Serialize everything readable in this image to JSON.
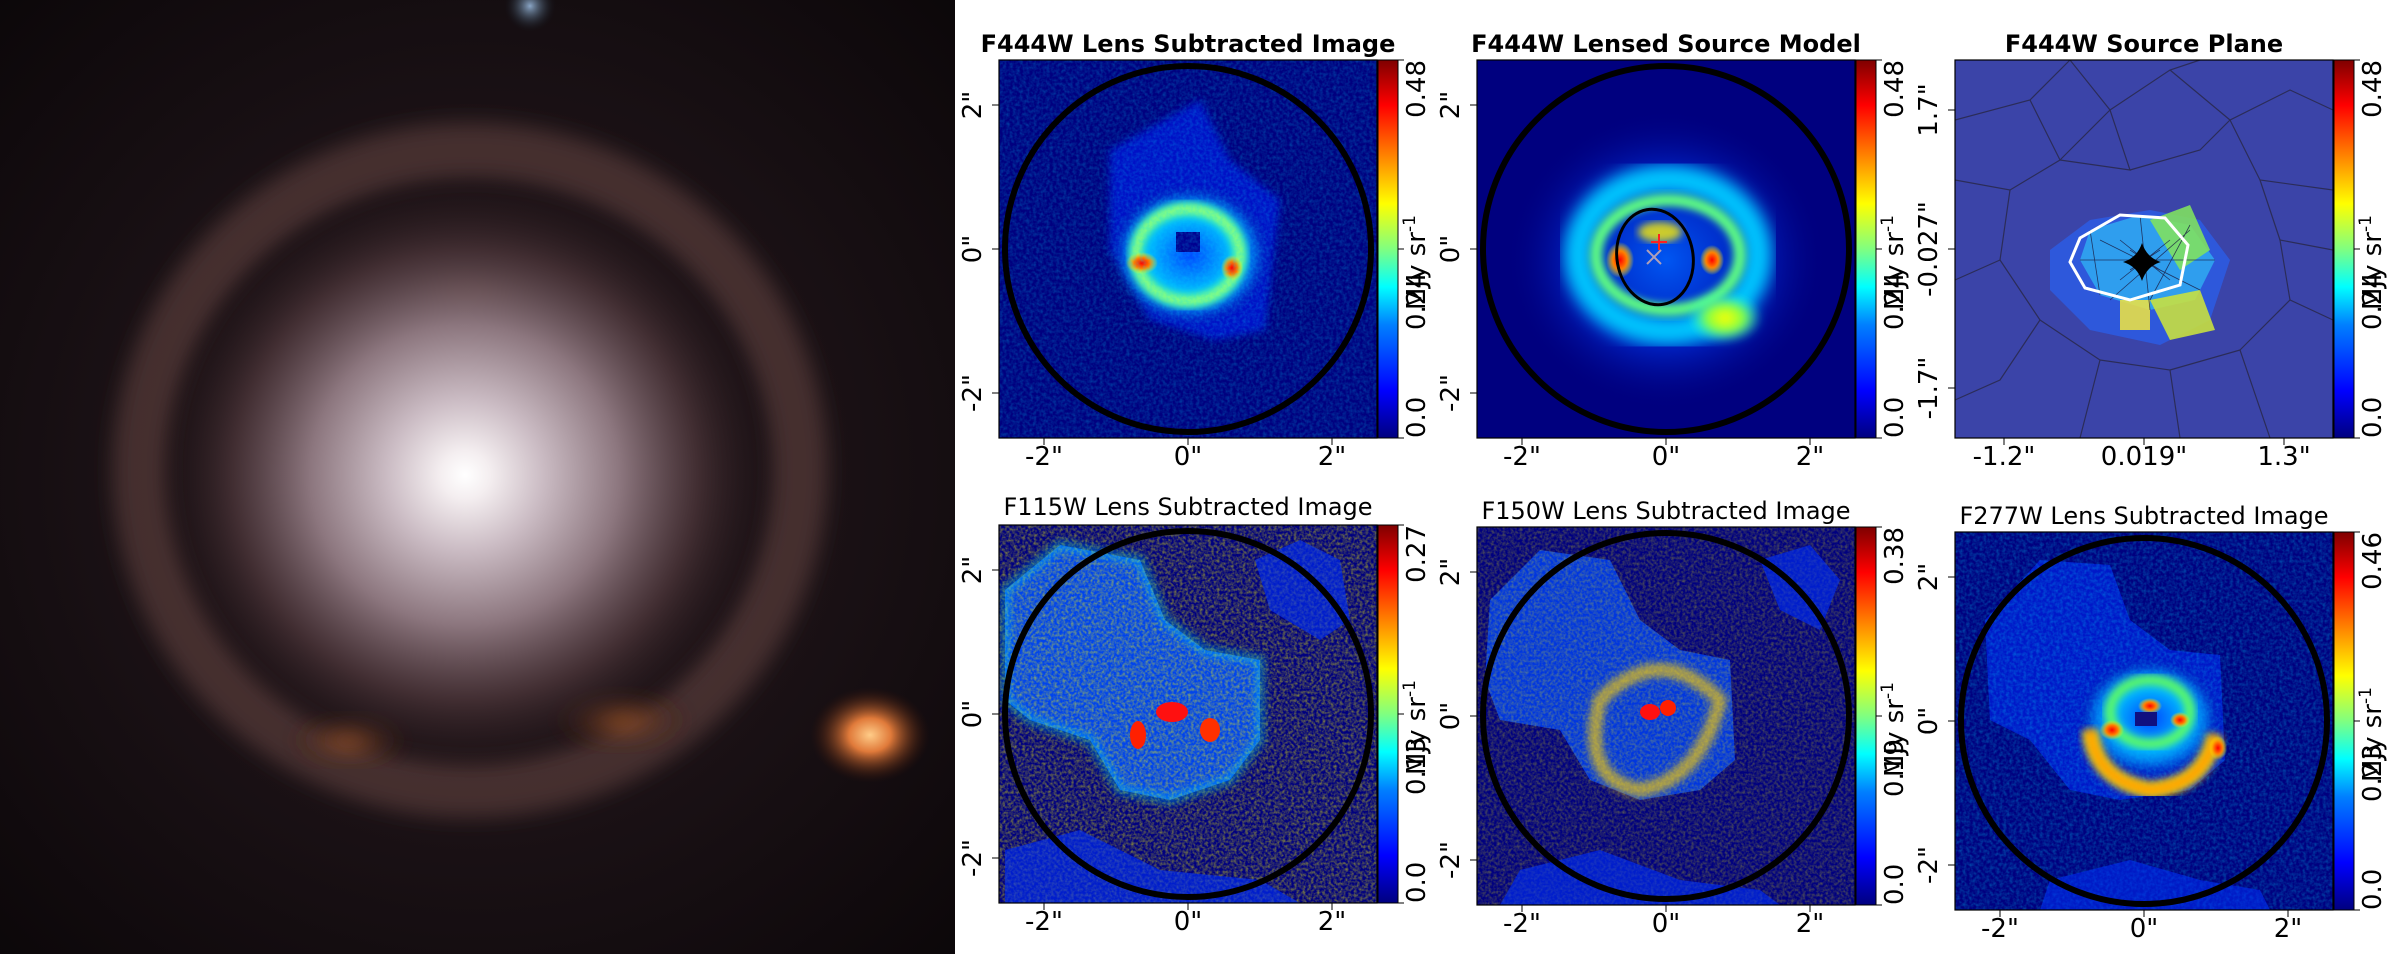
{
  "colors": {
    "map_background": "#00007f",
    "ring": "#000000",
    "critical_curve": "#ffffff",
    "colormap": [
      "#00007f",
      "#0000ff",
      "#0080ff",
      "#00ffff",
      "#80ff80",
      "#ffff00",
      "#ff8000",
      "#ff0000",
      "#7f0000"
    ]
  },
  "icons": {
    "red_marker": "plus-marker-icon",
    "grey_marker": "cross-marker-icon"
  },
  "panels": [
    {
      "id": "f444w-lens-subtracted",
      "title": "F444W Lens Subtracted Image",
      "bold": true,
      "x_ticks": [
        "-2\"",
        "0\"",
        "2\""
      ],
      "y_ticks": [
        "2\"",
        "0\"",
        "-2\""
      ],
      "colorbar": {
        "min_label": "0.0",
        "mid_label": "0.24",
        "max_label": "0.48",
        "unit": "MJy sr",
        "unit_exp": "-1"
      }
    },
    {
      "id": "f444w-lensed-source-model",
      "title": "F444W Lensed Source Model",
      "bold": true,
      "x_ticks": [
        "-2\"",
        "0\"",
        "2\""
      ],
      "y_ticks": [
        "2\"",
        "0\"",
        "-2\""
      ],
      "colorbar": {
        "min_label": "0.0",
        "mid_label": "0.24",
        "max_label": "0.48",
        "unit": "MJy sr",
        "unit_exp": "-1"
      }
    },
    {
      "id": "f444w-source-plane",
      "title": "F444W Source Plane",
      "bold": true,
      "x_ticks": [
        "-1.2\"",
        "0.019\"",
        "1.3\""
      ],
      "y_ticks": [
        "1.7\"",
        "-0.027\"",
        "-1.7\""
      ],
      "colorbar": {
        "min_label": "0.0",
        "mid_label": "0.24",
        "max_label": "0.48",
        "unit": "MJy sr",
        "unit_exp": "-1"
      }
    },
    {
      "id": "f115w-lens-subtracted",
      "title": "F115W Lens Subtracted Image",
      "bold": false,
      "x_ticks": [
        "-2\"",
        "0\"",
        "2\""
      ],
      "y_ticks": [
        "2\"",
        "0\"",
        "-2\""
      ],
      "colorbar": {
        "min_label": "0.0",
        "mid_label": "0.13",
        "max_label": "0.27",
        "unit": "MJy sr",
        "unit_exp": "-1"
      }
    },
    {
      "id": "f150w-lens-subtracted",
      "title": "F150W Lens Subtracted Image",
      "bold": false,
      "x_ticks": [
        "-2\"",
        "0\"",
        "2\""
      ],
      "y_ticks": [
        "2\"",
        "0\"",
        "-2\""
      ],
      "colorbar": {
        "min_label": "0.0",
        "mid_label": "0.19",
        "max_label": "0.38",
        "unit": "MJy sr",
        "unit_exp": "-1"
      }
    },
    {
      "id": "f277w-lens-subtracted",
      "title": "F277W Lens Subtracted Image",
      "bold": false,
      "x_ticks": [
        "-2\"",
        "0\"",
        "2\""
      ],
      "y_ticks": [
        "2\"",
        "0\"",
        "-2\""
      ],
      "colorbar": {
        "min_label": "0.0",
        "mid_label": "0.23",
        "max_label": "0.46",
        "unit": "MJy sr",
        "unit_exp": "-1"
      }
    }
  ]
}
